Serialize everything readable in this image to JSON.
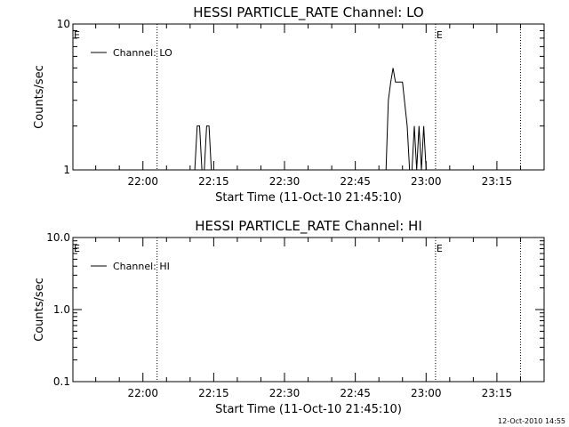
{
  "chart_data": [
    {
      "type": "line",
      "title": "HESSI PARTICLE_RATE Channel: LO",
      "xlabel": "Start Time (11-Oct-10 21:45:10)",
      "ylabel": "Counts/sec",
      "y_scale": "log",
      "ylim": [
        1,
        10
      ],
      "y_ticks": [
        1,
        10
      ],
      "y_tick_labels": [
        "1",
        "10"
      ],
      "xlim": [
        "21:45:10",
        "23:25:00"
      ],
      "x_ticks": [
        "22:00",
        "22:15",
        "22:30",
        "22:45",
        "23:00",
        "23:15"
      ],
      "legend": "top-left",
      "grid": false,
      "series": [
        {
          "name": "Channel: LO",
          "color": "#000000",
          "points": [
            [
              "21:45:10",
              1
            ],
            [
              "22:11:00",
              1
            ],
            [
              "22:11:30",
              2
            ],
            [
              "22:12:00",
              2
            ],
            [
              "22:12:30",
              1
            ],
            [
              "22:13:00",
              1
            ],
            [
              "22:13:30",
              2
            ],
            [
              "22:14:00",
              2
            ],
            [
              "22:14:30",
              1
            ],
            [
              "22:51:30",
              1
            ],
            [
              "22:52:00",
              3
            ],
            [
              "22:52:30",
              4
            ],
            [
              "22:53:00",
              5
            ],
            [
              "22:53:30",
              4
            ],
            [
              "22:55:00",
              4
            ],
            [
              "22:56:00",
              2
            ],
            [
              "22:56:30",
              1
            ],
            [
              "22:57:00",
              1
            ],
            [
              "22:57:30",
              2
            ],
            [
              "22:58:00",
              1
            ],
            [
              "22:58:30",
              2
            ],
            [
              "22:59:00",
              1
            ],
            [
              "22:59:30",
              2
            ],
            [
              "23:00:00",
              1
            ],
            [
              "23:25:00",
              1
            ]
          ]
        }
      ],
      "markers": [
        {
          "label": "E",
          "time": "21:45:10"
        },
        {
          "label": "E",
          "time": "23:02:00"
        }
      ],
      "vlines": [
        "22:03:00",
        "23:02:00",
        "23:20:00"
      ]
    },
    {
      "type": "line",
      "title": "HESSI PARTICLE_RATE Channel: HI",
      "xlabel": "Start Time (11-Oct-10 21:45:10)",
      "ylabel": "Counts/sec",
      "y_scale": "log",
      "ylim": [
        0.1,
        10
      ],
      "y_ticks": [
        0.1,
        1,
        10
      ],
      "y_tick_labels": [
        "0.1",
        "1.0",
        "10.0"
      ],
      "xlim": [
        "21:45:10",
        "23:25:00"
      ],
      "x_ticks": [
        "22:00",
        "22:15",
        "22:30",
        "22:45",
        "23:00",
        "23:15"
      ],
      "legend": "top-left",
      "grid": false,
      "series": [
        {
          "name": "Channel: HI",
          "color": "#000000",
          "points": []
        }
      ],
      "markers": [
        {
          "label": "E",
          "time": "21:45:10"
        },
        {
          "label": "E",
          "time": "23:02:00"
        }
      ],
      "vlines": [
        "22:03:00",
        "23:02:00",
        "23:20:00"
      ]
    }
  ],
  "footer": {
    "timestamp": "12-Oct-2010 14:55"
  }
}
